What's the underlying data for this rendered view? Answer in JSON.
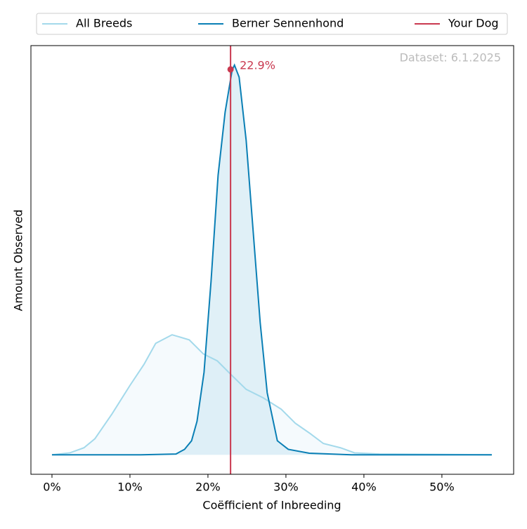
{
  "chart_data": {
    "type": "line",
    "xlabel": "Coëfficient of Inbreeding",
    "ylabel": "Amount Observed",
    "annotation": "Dataset: 6.1.2025",
    "legend": "top",
    "xlim": [
      -2.7,
      59.2
    ],
    "ylim": [
      -5.0,
      105.0
    ],
    "xticks": [
      {
        "value": 0,
        "label": "0%"
      },
      {
        "value": 10,
        "label": "10%"
      },
      {
        "value": 20,
        "label": "20%"
      },
      {
        "value": 30,
        "label": "30%"
      },
      {
        "value": 40,
        "label": "40%"
      },
      {
        "value": 50,
        "label": "50%"
      }
    ],
    "series": [
      {
        "name": "All Breeds",
        "color": "#a3d9eb",
        "fill": "#f2f9fc",
        "x": [
          0,
          2.3,
          4.1,
          5.5,
          7.7,
          10,
          11.8,
          13.3,
          15.4,
          17.6,
          19.4,
          21.2,
          23.0,
          24.9,
          27.1,
          29.4,
          31.2,
          33.0,
          34.8,
          37.0,
          38.8,
          42.0,
          56.4
        ],
        "values": [
          0,
          0.5,
          1.8,
          4.1,
          10.5,
          17.8,
          23.2,
          28.6,
          30.8,
          29.5,
          25.9,
          24.1,
          20.5,
          16.8,
          14.6,
          11.7,
          8.1,
          5.6,
          2.9,
          1.8,
          0.5,
          0.2,
          0
        ]
      },
      {
        "name": "Berner Sennenhond",
        "color": "#0a7fb5",
        "fill": "#d8ecf5",
        "x": [
          0,
          11.4,
          15.9,
          17.0,
          17.9,
          18.6,
          19.5,
          20.4,
          21.3,
          22.2,
          23.1,
          23.4,
          24.0,
          24.9,
          25.8,
          26.7,
          27.6,
          28.9,
          30.3,
          33.0,
          38.4,
          56.4
        ],
        "values": [
          0,
          0,
          0.2,
          1.4,
          3.6,
          8.6,
          21.2,
          44.6,
          71.7,
          87.9,
          98.7,
          100,
          96.9,
          80.7,
          57.3,
          33.9,
          15.9,
          3.6,
          1.4,
          0.4,
          0,
          0
        ]
      }
    ],
    "marker": {
      "name": "Your Dog",
      "color": "#c9384f",
      "x": 22.9,
      "y": 98.9,
      "value_label": "22.9%"
    }
  }
}
